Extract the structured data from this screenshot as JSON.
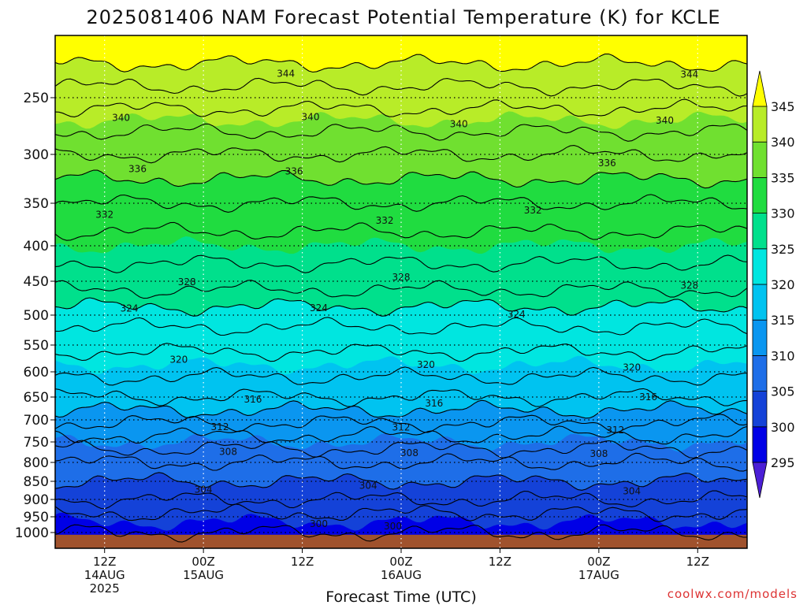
{
  "chart_data": {
    "type": "heatmap",
    "title": "2025081406 NAM Forecast Potential Temperature (K) for KCLE",
    "xlabel": "Forecast Time (UTC)",
    "credit": "coolwx.com/models",
    "y_ticks": [
      "250",
      "300",
      "350",
      "400",
      "450",
      "500",
      "550",
      "600",
      "650",
      "700",
      "750",
      "800",
      "850",
      "900",
      "950",
      "1000"
    ],
    "y_tick_values": [
      250,
      300,
      350,
      400,
      450,
      500,
      550,
      600,
      650,
      700,
      750,
      800,
      850,
      900,
      950,
      1000
    ],
    "x_ticks": [
      {
        "hour": 6,
        "line1": "12Z",
        "line2": "14AUG",
        "line3": "2025"
      },
      {
        "hour": 18,
        "line1": "00Z",
        "line2": "15AUG",
        "line3": ""
      },
      {
        "hour": 30,
        "line1": "12Z",
        "line2": "",
        "line3": ""
      },
      {
        "hour": 42,
        "line1": "00Z",
        "line2": "16AUG",
        "line3": ""
      },
      {
        "hour": 54,
        "line1": "12Z",
        "line2": "",
        "line3": ""
      },
      {
        "hour": 66,
        "line1": "00Z",
        "line2": "17AUG",
        "line3": ""
      },
      {
        "hour": 78,
        "line1": "12Z",
        "line2": "",
        "line3": ""
      }
    ],
    "xlim_hours": [
      0,
      84
    ],
    "colorbar_ticks": [
      "295",
      "300",
      "305",
      "310",
      "315",
      "320",
      "325",
      "330",
      "335",
      "340",
      "345"
    ],
    "colorbar_levels": [
      295,
      300,
      305,
      310,
      315,
      320,
      325,
      330,
      335,
      340,
      345
    ],
    "colors": {
      "below_295": "#4b1fd6",
      "295-300": "#0000e6",
      "300-305": "#1442d8",
      "305-310": "#1e6ee8",
      "310-315": "#0a96f0",
      "315-320": "#00c3f0",
      "320-325": "#00e6e0",
      "325-330": "#00e08c",
      "330-335": "#20dc40",
      "335-340": "#70e030",
      "340-345": "#b8ec28",
      "above_345": "#ffff00",
      "terrain": "#a0522d"
    },
    "contour_interval": 2,
    "contour_label_values": [
      "344",
      "340",
      "336",
      "332",
      "328",
      "324",
      "320",
      "316",
      "312",
      "308",
      "304",
      "300"
    ],
    "contour_profile": [
      {
        "pressure": 250,
        "theta": 342
      },
      {
        "pressure": 300,
        "theta": 337
      },
      {
        "pressure": 350,
        "theta": 333
      },
      {
        "pressure": 400,
        "theta": 330
      },
      {
        "pressure": 450,
        "theta": 328
      },
      {
        "pressure": 500,
        "theta": 324
      },
      {
        "pressure": 550,
        "theta": 321.5
      },
      {
        "pressure": 600,
        "theta": 319.5
      },
      {
        "pressure": 650,
        "theta": 317
      },
      {
        "pressure": 700,
        "theta": 313.5
      },
      {
        "pressure": 750,
        "theta": 310
      },
      {
        "pressure": 800,
        "theta": 307
      },
      {
        "pressure": 850,
        "theta": 305
      },
      {
        "pressure": 900,
        "theta": 303
      },
      {
        "pressure": 950,
        "theta": 300.5
      },
      {
        "pressure": 1000,
        "theta": 299
      }
    ],
    "contour_labels": [
      {
        "text": "344",
        "hour": 28,
        "theta": 344
      },
      {
        "text": "340",
        "hour": 8,
        "theta": 340
      },
      {
        "text": "340",
        "hour": 31,
        "theta": 340
      },
      {
        "text": "340",
        "hour": 49,
        "theta": 340
      },
      {
        "text": "344",
        "hour": 77,
        "theta": 344
      },
      {
        "text": "340",
        "hour": 74,
        "theta": 340
      },
      {
        "text": "336",
        "hour": 10,
        "theta": 336
      },
      {
        "text": "336",
        "hour": 29,
        "theta": 336
      },
      {
        "text": "336",
        "hour": 67,
        "theta": 336
      },
      {
        "text": "332",
        "hour": 6,
        "theta": 332
      },
      {
        "text": "332",
        "hour": 40,
        "theta": 332
      },
      {
        "text": "332",
        "hour": 58,
        "theta": 332
      },
      {
        "text": "328",
        "hour": 16,
        "theta": 328
      },
      {
        "text": "328",
        "hour": 42,
        "theta": 328
      },
      {
        "text": "328",
        "hour": 77,
        "theta": 328
      },
      {
        "text": "324",
        "hour": 9,
        "theta": 324
      },
      {
        "text": "324",
        "hour": 32,
        "theta": 324
      },
      {
        "text": "324",
        "hour": 56,
        "theta": 324
      },
      {
        "text": "320",
        "hour": 15,
        "theta": 320
      },
      {
        "text": "320",
        "hour": 45,
        "theta": 320
      },
      {
        "text": "320",
        "hour": 70,
        "theta": 320
      },
      {
        "text": "316",
        "hour": 24,
        "theta": 316
      },
      {
        "text": "316",
        "hour": 46,
        "theta": 316
      },
      {
        "text": "316",
        "hour": 72,
        "theta": 316
      },
      {
        "text": "312",
        "hour": 20,
        "theta": 312
      },
      {
        "text": "312",
        "hour": 42,
        "theta": 312
      },
      {
        "text": "312",
        "hour": 68,
        "theta": 312
      },
      {
        "text": "308",
        "hour": 21,
        "theta": 308
      },
      {
        "text": "308",
        "hour": 43,
        "theta": 308
      },
      {
        "text": "308",
        "hour": 66,
        "theta": 308
      },
      {
        "text": "304",
        "hour": 18,
        "theta": 304
      },
      {
        "text": "304",
        "hour": 38,
        "theta": 304
      },
      {
        "text": "304",
        "hour": 70,
        "theta": 304
      },
      {
        "text": "300",
        "hour": 32,
        "theta": 300
      },
      {
        "text": "300",
        "hour": 41,
        "theta": 299.5
      }
    ]
  }
}
